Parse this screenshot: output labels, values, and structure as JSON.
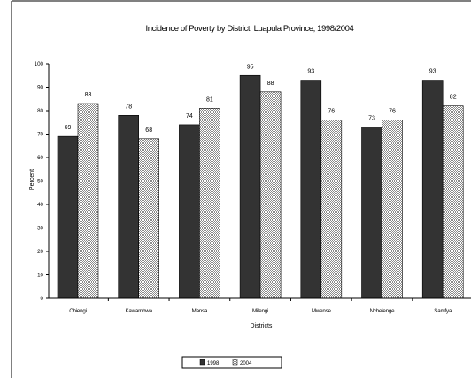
{
  "chart_data": {
    "type": "bar",
    "title": "Incidence of Poverty by District, Luapula Province, 1998/2004",
    "xlabel": "Districts",
    "ylabel": "Percent",
    "ylim": [
      0,
      100
    ],
    "yticks": [
      0,
      10,
      20,
      30,
      40,
      50,
      60,
      70,
      80,
      90,
      100
    ],
    "grid": false,
    "legend_position": "bottom-center",
    "categories": [
      "Chiengi",
      "Kawambwa",
      "Mansa",
      "Milengi",
      "Mwense",
      "Nchelenge",
      "Samfya"
    ],
    "series": [
      {
        "name": "1998",
        "values": [
          69,
          78,
          74,
          95,
          93,
          73,
          93
        ],
        "color": "#333333",
        "pattern": "solid"
      },
      {
        "name": "2004",
        "values": [
          83,
          68,
          81,
          88,
          76,
          76,
          82
        ],
        "color": "#d8d8d8",
        "pattern": "hatched"
      }
    ],
    "data_labels": true
  }
}
